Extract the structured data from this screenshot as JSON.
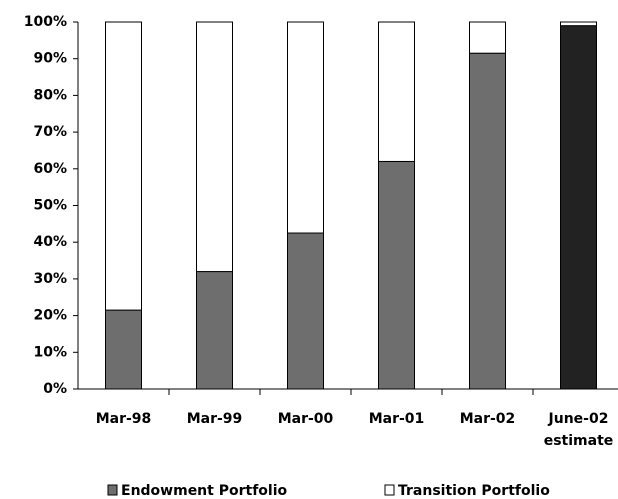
{
  "chart_data": {
    "type": "stacked_bar",
    "categories": [
      "Mar-98",
      "Mar-99",
      "Mar-00",
      "Mar-01",
      "Mar-02",
      "June-02 estimate"
    ],
    "series": [
      {
        "name": "Endowment Portfolio",
        "color": "#6e6e6e",
        "colors": [
          "#6e6e6e",
          "#6e6e6e",
          "#6e6e6e",
          "#6e6e6e",
          "#6e6e6e",
          "#222222"
        ],
        "values": [
          21.5,
          32,
          42.5,
          62,
          91.5,
          99
        ]
      },
      {
        "name": "Transition Portfolio",
        "color": "#ffffff",
        "values": [
          78.5,
          68,
          57.5,
          38,
          8.5,
          1
        ]
      }
    ],
    "ylim": [
      0,
      100
    ],
    "yticks": [
      {
        "value": 0,
        "label": "0%"
      },
      {
        "value": 10,
        "label": "10%"
      },
      {
        "value": 20,
        "label": "20%"
      },
      {
        "value": 30,
        "label": "30%"
      },
      {
        "value": 40,
        "label": "40%"
      },
      {
        "value": 50,
        "label": "50%"
      },
      {
        "value": 60,
        "label": "60%"
      },
      {
        "value": 70,
        "label": "70%"
      },
      {
        "value": 80,
        "label": "80%"
      },
      {
        "value": 90,
        "label": "90%"
      },
      {
        "value": 100,
        "label": "100%"
      }
    ],
    "legend": "bottom"
  }
}
